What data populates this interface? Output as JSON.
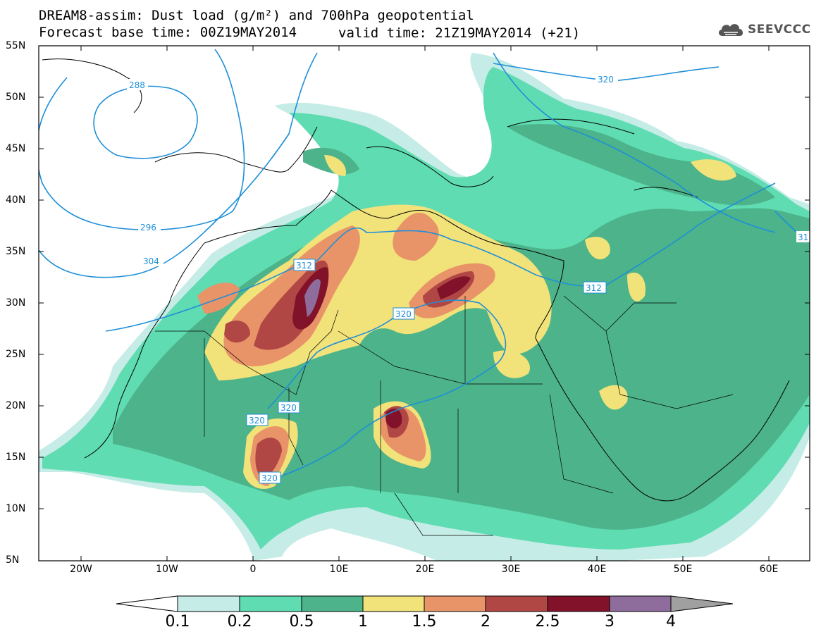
{
  "title": {
    "line1": "DREAM8-assim: Dust load (g/m²) and 700hPa geopotential",
    "line2_left": "Forecast base time: 00Z19MAY2014",
    "line2_right": "valid time: 21Z19MAY2014 (+21)"
  },
  "logo": {
    "text": "SEEVCCC",
    "icon": "cloud-icon"
  },
  "axes": {
    "lat_labels": [
      "55N",
      "50N",
      "45N",
      "40N",
      "35N",
      "30N",
      "25N",
      "20N",
      "15N",
      "10N",
      "5N"
    ],
    "lon_labels": [
      "20W",
      "10W",
      "0",
      "10E",
      "20E",
      "30E",
      "40E",
      "50E",
      "60E"
    ]
  },
  "contours": {
    "label_values": [
      "288",
      "296",
      "304",
      "312",
      "312",
      "320",
      "320",
      "320",
      "320",
      "320",
      "31"
    ],
    "color": "#1e8fd8"
  },
  "colorbar": {
    "ticks": [
      "0.1",
      "0.2",
      "0.5",
      "1",
      "1.5",
      "2",
      "2.5",
      "3",
      "4"
    ],
    "colors": [
      "#c5ece6",
      "#5fdcb2",
      "#4db38a",
      "#f1e27a",
      "#e89468",
      "#b14745",
      "#82122a",
      "#8e6c9c",
      "#a0a0a0"
    ],
    "below_color": "#ffffff"
  },
  "dust_colors": {
    "c01": "#c5ece6",
    "c02": "#5fdcb2",
    "c05": "#4db38a",
    "c1": "#f1e27a",
    "c15": "#e89468",
    "c2": "#b14745",
    "c25": "#82122a",
    "c3": "#8e6c9c"
  }
}
